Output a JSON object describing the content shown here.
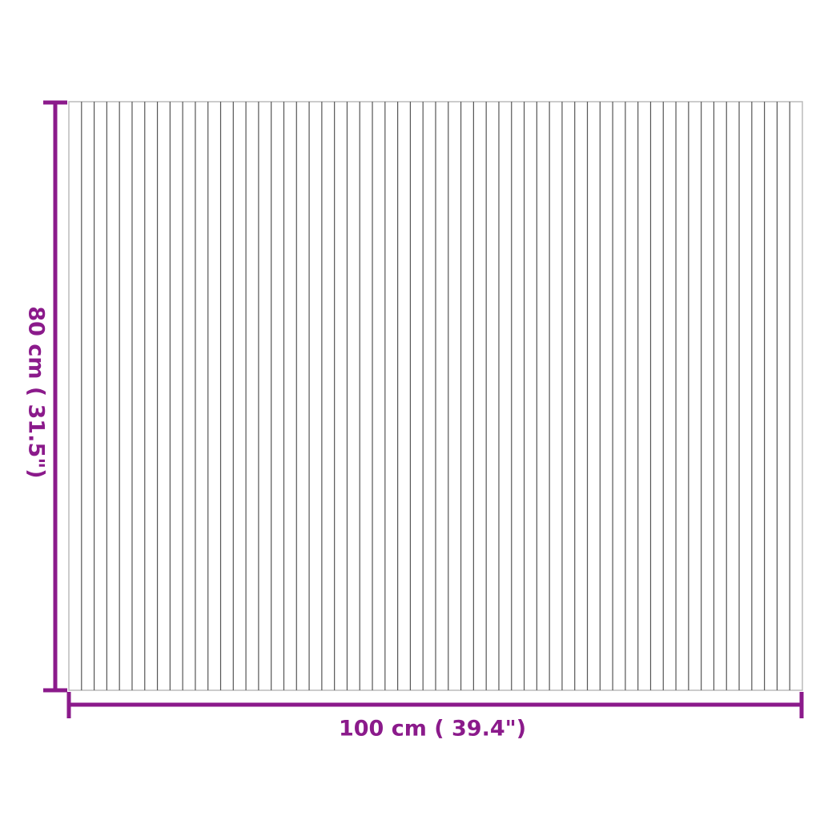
{
  "colors": {
    "dimension": "#8b1a8b",
    "slat_line": "#555555",
    "outline": "#bbbbbb"
  },
  "product": {
    "type": "slatted rectangular mat",
    "slat_count": 58
  },
  "dimensions": {
    "width_label": "100 cm ( 39.4\")",
    "height_label": "80 cm ( 31.5\")"
  }
}
